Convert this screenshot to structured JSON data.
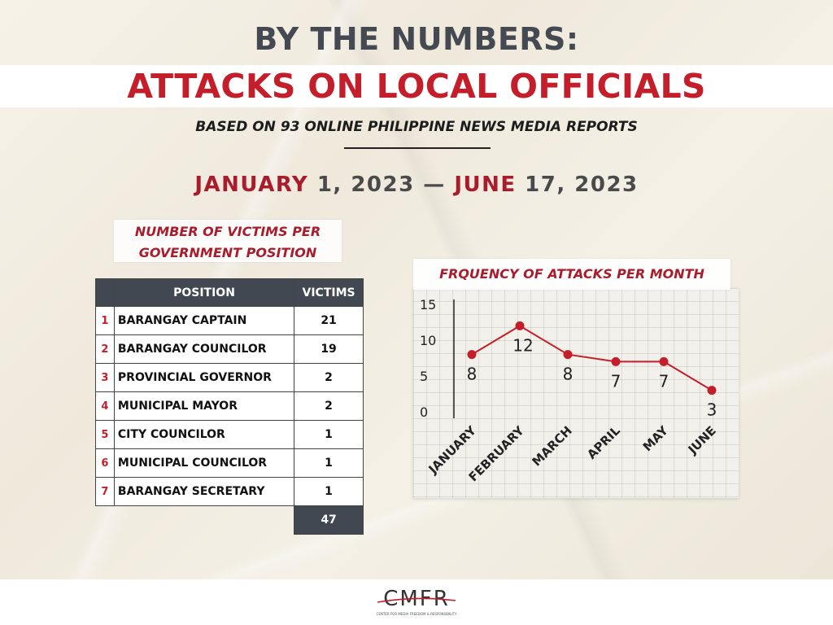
{
  "header": {
    "title_line1": "BY THE NUMBERS:",
    "title_line2": "ATTACKS ON LOCAL OFFICIALS",
    "subtitle": "BASED ON 93 ONLINE PHILIPPINE NEWS MEDIA REPORTS",
    "date_range": {
      "start_month": "JANUARY",
      "start_rest": " 1, 2023 — ",
      "end_month": "JUNE",
      "end_rest": " 17, 2023"
    }
  },
  "table": {
    "title_line1": "NUMBER OF VICTIMS PER",
    "title_line2": "GOVERNMENT POSITION",
    "col_position": "POSITION",
    "col_victims": "VICTIMS",
    "rows": [
      {
        "num": "1",
        "position": "BARANGAY CAPTAIN",
        "victims": "21"
      },
      {
        "num": "2",
        "position": "BARANGAY COUNCILOR",
        "victims": "19"
      },
      {
        "num": "3",
        "position": "PROVINCIAL GOVERNOR",
        "victims": "2"
      },
      {
        "num": "4",
        "position": "MUNICIPAL MAYOR",
        "victims": "2"
      },
      {
        "num": "5",
        "position": "CITY COUNCILOR",
        "victims": "1"
      },
      {
        "num": "6",
        "position": "MUNICIPAL COUNCILOR",
        "victims": "1"
      },
      {
        "num": "7",
        "position": "BARANGAY SECRETARY",
        "victims": "1"
      }
    ],
    "total": "47"
  },
  "chart_data": {
    "type": "line",
    "title": "FRQUENCY OF ATTACKS PER MONTH",
    "categories": [
      "JANUARY",
      "FEBRUARY",
      "MARCH",
      "APRIL",
      "MAY",
      "JUNE"
    ],
    "values": [
      8,
      12,
      8,
      7,
      7,
      3
    ],
    "data_labels": [
      "8",
      "12",
      "8",
      "7",
      "7",
      "3"
    ],
    "yticks": [
      "15",
      "10",
      "5",
      "0"
    ],
    "ylim": [
      0,
      15
    ],
    "xlabel": "",
    "ylabel": "",
    "grid": true,
    "line_color": "#c41e2a"
  },
  "footer": {
    "logo_text": "CMFR",
    "logo_tagline": "CENTER FOR MEDIA FREEDOM & RESPONSIBILITY"
  }
}
